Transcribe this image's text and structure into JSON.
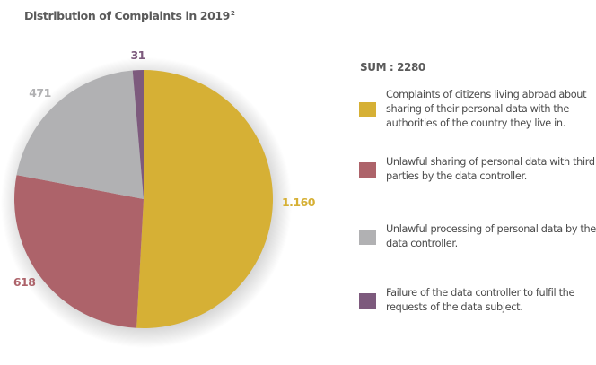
{
  "chart_data": {
    "type": "pie",
    "title": "Distribution of Complaints in 2019",
    "title_footnote": "2",
    "sum_label": "SUM : 2280",
    "start_angle": "top (12 o'clock), clockwise",
    "slices": [
      {
        "label": "Complaints of citizens living abroad about sharing of their personal data with the authorities of the country they live in.",
        "value": 1160,
        "display": "1.160",
        "color": "#d6b035",
        "label_position": "right"
      },
      {
        "label": "Unlawful sharing of personal data with third parties by the data controller.",
        "value": 618,
        "display": "618",
        "color": "#ad636a",
        "label_position": "bottom-left"
      },
      {
        "label": "Unlawful processing of personal data by the data controller.",
        "value": 471,
        "display": "471",
        "color": "#b1b1b3",
        "label_position": "top-left"
      },
      {
        "label": "Failure of the data controller to fulfil the requests of the data subject.",
        "value": 31,
        "display": "31",
        "color": "#7d5a7d",
        "label_position": "top"
      }
    ],
    "legend": {
      "position": "right"
    }
  }
}
